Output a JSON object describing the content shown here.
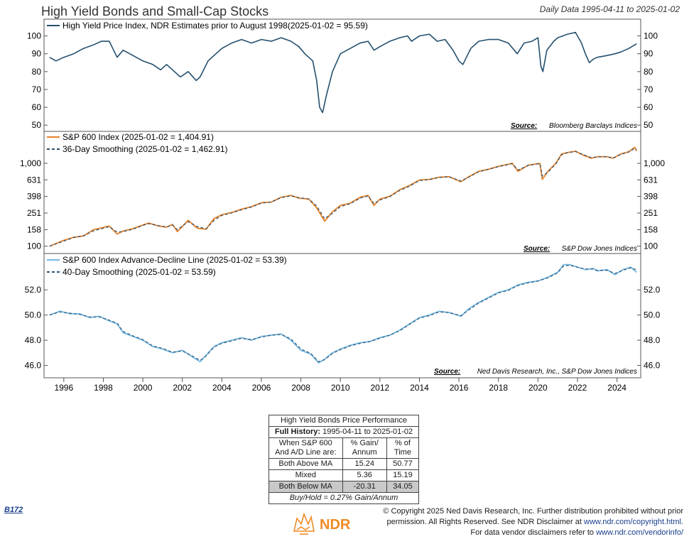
{
  "header": {
    "title": "High Yield Bonds and Small-Cap Stocks",
    "date_range": "Daily Data 1995-04-11 to 2025-01-02"
  },
  "colors": {
    "panel1": "#24506e",
    "panel2_raw": "#e7832c",
    "panel2_smooth": "#2f4e66",
    "panel3_raw": "#74b8e3",
    "panel3_smooth": "#2f5878",
    "logo": "#f08a24"
  },
  "chart_data": [
    {
      "type": "line",
      "legend": [
        "High Yield Price Index, NDR Estimates prior to August 1998(2025-01-02 = 95.59)"
      ],
      "source_label": "Source:",
      "source": "Bloomberg Barclays Indices",
      "y_ticks": [
        50,
        60,
        70,
        80,
        90,
        100
      ],
      "ylim": [
        48.5,
        107
      ],
      "series": [
        {
          "name": "High Yield Price Index",
          "x": [
            1995.28,
            1995.6,
            1996.0,
            1996.5,
            1997.0,
            1997.5,
            1997.9,
            1998.3,
            1998.7,
            1999.0,
            1999.5,
            2000.0,
            2000.5,
            2000.9,
            2001.2,
            2001.6,
            2001.9,
            2002.3,
            2002.7,
            2002.9,
            2003.3,
            2003.7,
            2004.0,
            2004.5,
            2005.0,
            2005.5,
            2006.0,
            2006.5,
            2007.0,
            2007.5,
            2007.9,
            2008.2,
            2008.6,
            2008.8,
            2008.95,
            2009.1,
            2009.3,
            2009.6,
            2010.0,
            2010.5,
            2011.0,
            2011.4,
            2011.7,
            2012.0,
            2012.5,
            2013.0,
            2013.4,
            2013.6,
            2014.0,
            2014.5,
            2014.9,
            2015.3,
            2015.7,
            2016.0,
            2016.2,
            2016.6,
            2017.0,
            2017.5,
            2018.0,
            2018.5,
            2018.95,
            2019.3,
            2019.7,
            2020.0,
            2020.15,
            2020.25,
            2020.45,
            2020.8,
            2021.0,
            2021.5,
            2021.9,
            2022.2,
            2022.4,
            2022.6,
            2022.8,
            2023.0,
            2023.5,
            2023.9,
            2024.2,
            2024.6,
            2024.99
          ],
          "y": [
            88,
            86,
            88,
            90,
            93,
            95,
            97,
            97,
            88,
            92,
            89,
            86,
            84,
            81,
            84,
            80,
            77,
            80,
            75,
            77,
            86,
            90,
            93,
            96,
            98,
            96,
            98,
            97,
            99,
            97,
            94,
            90,
            86,
            75,
            60,
            57,
            67,
            80,
            90,
            93,
            96,
            97,
            92,
            94,
            97,
            99,
            100,
            97,
            100,
            101,
            97,
            98,
            92,
            86,
            84,
            93,
            97,
            98,
            98,
            96,
            90,
            96,
            97,
            99,
            83,
            80,
            92,
            97,
            99,
            101,
            102,
            96,
            90,
            85,
            87,
            88,
            89,
            90,
            91,
            93,
            95.59
          ]
        }
      ]
    },
    {
      "type": "line",
      "legend": [
        "S&P 600 Index (2025-01-02 = 1,404.91)",
        "36-Day Smoothing (2025-01-02 = 1,462.91)"
      ],
      "source_label": "Source:",
      "source": "S&P Dow Jones Indices",
      "y_ticks": [
        100,
        158,
        251,
        398,
        631,
        1000
      ],
      "y_tick_labels": [
        "100",
        "158",
        "251",
        "398",
        "631",
        "1,000"
      ],
      "y_scale": "log",
      "ylim": [
        90,
        2200
      ],
      "series": [
        {
          "name": "S&P 600 Index",
          "x": [
            1995.28,
            1996.0,
            1996.5,
            1997.0,
            1997.5,
            1998.3,
            1998.7,
            1999.0,
            1999.5,
            2000.0,
            2000.3,
            2000.8,
            2001.2,
            2001.5,
            2001.75,
            2002.3,
            2002.75,
            2003.2,
            2003.6,
            2004.0,
            2004.5,
            2005.0,
            2005.5,
            2006.0,
            2006.5,
            2007.0,
            2007.5,
            2007.9,
            2008.4,
            2008.8,
            2009.2,
            2009.6,
            2010.0,
            2010.5,
            2011.0,
            2011.4,
            2011.7,
            2012.0,
            2012.5,
            2013.0,
            2013.5,
            2014.0,
            2014.5,
            2015.0,
            2015.5,
            2016.1,
            2016.5,
            2017.0,
            2017.5,
            2018.0,
            2018.7,
            2018.99,
            2019.5,
            2020.1,
            2020.22,
            2020.5,
            2020.9,
            2021.2,
            2021.5,
            2021.9,
            2022.3,
            2022.7,
            2023.0,
            2023.5,
            2023.8,
            2024.2,
            2024.6,
            2024.9,
            2024.99
          ],
          "y": [
            100,
            118,
            128,
            133,
            158,
            175,
            140,
            152,
            163,
            180,
            190,
            175,
            170,
            183,
            150,
            205,
            165,
            160,
            215,
            240,
            255,
            280,
            300,
            335,
            340,
            390,
            410,
            380,
            370,
            290,
            200,
            260,
            310,
            330,
            390,
            410,
            310,
            370,
            400,
            480,
            540,
            630,
            640,
            680,
            690,
            600,
            690,
            800,
            850,
            920,
            1000,
            800,
            950,
            1000,
            640,
            800,
            1000,
            1300,
            1350,
            1400,
            1250,
            1150,
            1200,
            1200,
            1150,
            1300,
            1380,
            1560,
            1404.91
          ]
        },
        {
          "name": "36-Day Smoothing",
          "x": [
            1995.28,
            1996.0,
            1996.5,
            1997.0,
            1997.5,
            1998.3,
            1998.7,
            1999.0,
            1999.5,
            2000.0,
            2000.3,
            2000.8,
            2001.2,
            2001.5,
            2001.75,
            2002.3,
            2002.75,
            2003.2,
            2003.6,
            2004.0,
            2004.5,
            2005.0,
            2005.5,
            2006.0,
            2006.5,
            2007.0,
            2007.5,
            2007.9,
            2008.4,
            2008.8,
            2009.2,
            2009.6,
            2010.0,
            2010.5,
            2011.0,
            2011.4,
            2011.7,
            2012.0,
            2012.5,
            2013.0,
            2013.5,
            2014.0,
            2014.5,
            2015.0,
            2015.5,
            2016.1,
            2016.5,
            2017.0,
            2017.5,
            2018.0,
            2018.7,
            2018.99,
            2019.5,
            2020.1,
            2020.22,
            2020.5,
            2020.9,
            2021.2,
            2021.5,
            2021.9,
            2022.3,
            2022.7,
            2023.0,
            2023.5,
            2023.8,
            2024.2,
            2024.6,
            2024.9,
            2024.99
          ],
          "y": [
            100,
            115,
            127,
            133,
            153,
            172,
            148,
            150,
            160,
            178,
            187,
            177,
            171,
            180,
            158,
            198,
            172,
            162,
            205,
            235,
            252,
            275,
            297,
            330,
            340,
            385,
            405,
            385,
            372,
            305,
            215,
            250,
            300,
            325,
            380,
            405,
            325,
            360,
            395,
            470,
            530,
            620,
            635,
            675,
            688,
            610,
            680,
            790,
            845,
            910,
            990,
            830,
            940,
            995,
            700,
            780,
            980,
            1270,
            1340,
            1390,
            1270,
            1170,
            1195,
            1200,
            1160,
            1280,
            1370,
            1520,
            1462.91
          ]
        }
      ]
    },
    {
      "type": "line",
      "legend": [
        "S&P 600 Index Advance-Decline Line (2025-01-02 = 53.39)",
        "40-Day Smoothing (2025-01-02 = 53.59)"
      ],
      "source_label": "Source:",
      "source": "Ned Davis Research, Inc., S&P Dow Jones Indices",
      "y_ticks": [
        46.0,
        48.0,
        50.0,
        52.0
      ],
      "y_tick_labels": [
        "46.0",
        "48.0",
        "50.0",
        "52.0"
      ],
      "ylim": [
        45.3,
        54.6
      ],
      "series": [
        {
          "name": "S&P 600 Index Advance-Decline Line",
          "x": [
            1995.28,
            1995.8,
            1996.3,
            1996.8,
            1997.3,
            1997.8,
            1998.2,
            1998.7,
            1999.0,
            1999.5,
            2000.0,
            2000.5,
            2001.0,
            2001.5,
            2002.0,
            2002.5,
            2002.9,
            2003.2,
            2003.6,
            2004.0,
            2004.5,
            2005.0,
            2005.5,
            2006.0,
            2006.5,
            2007.0,
            2007.5,
            2008.0,
            2008.5,
            2008.9,
            2009.2,
            2009.6,
            2010.0,
            2010.5,
            2011.0,
            2011.5,
            2012.0,
            2012.5,
            2013.0,
            2013.5,
            2014.0,
            2014.5,
            2015.0,
            2015.5,
            2016.1,
            2016.5,
            2017.0,
            2017.5,
            2018.0,
            2018.5,
            2019.0,
            2019.5,
            2020.0,
            2020.5,
            2021.0,
            2021.3,
            2021.6,
            2022.0,
            2022.4,
            2022.8,
            2023.0,
            2023.5,
            2023.9,
            2024.3,
            2024.7,
            2024.99
          ],
          "y": [
            50.0,
            50.3,
            50.1,
            50.1,
            49.8,
            49.9,
            49.6,
            49.3,
            48.6,
            48.3,
            48.0,
            47.5,
            47.3,
            47.0,
            47.2,
            46.7,
            46.3,
            46.8,
            47.5,
            47.8,
            48.0,
            48.2,
            48.0,
            48.3,
            48.4,
            48.5,
            48.0,
            47.2,
            46.9,
            46.2,
            46.5,
            47.0,
            47.3,
            47.6,
            47.8,
            47.9,
            48.2,
            48.4,
            48.8,
            49.3,
            49.8,
            50.0,
            50.3,
            50.2,
            49.9,
            50.5,
            51.0,
            51.4,
            51.8,
            52.0,
            52.4,
            52.6,
            52.7,
            53.0,
            53.4,
            54.0,
            54.0,
            53.8,
            53.6,
            53.7,
            53.5,
            53.6,
            53.2,
            53.6,
            53.8,
            53.39
          ]
        },
        {
          "name": "40-Day Smoothing",
          "x": [
            1995.28,
            1995.8,
            1996.3,
            1996.8,
            1997.3,
            1997.8,
            1998.2,
            1998.7,
            1999.0,
            1999.5,
            2000.0,
            2000.5,
            2001.0,
            2001.5,
            2002.0,
            2002.5,
            2002.9,
            2003.2,
            2003.6,
            2004.0,
            2004.5,
            2005.0,
            2005.5,
            2006.0,
            2006.5,
            2007.0,
            2007.5,
            2008.0,
            2008.5,
            2008.9,
            2009.2,
            2009.6,
            2010.0,
            2010.5,
            2011.0,
            2011.5,
            2012.0,
            2012.5,
            2013.0,
            2013.5,
            2014.0,
            2014.5,
            2015.0,
            2015.5,
            2016.1,
            2016.5,
            2017.0,
            2017.5,
            2018.0,
            2018.5,
            2019.0,
            2019.5,
            2020.0,
            2020.5,
            2021.0,
            2021.3,
            2021.6,
            2022.0,
            2022.4,
            2022.8,
            2023.0,
            2023.5,
            2023.9,
            2024.3,
            2024.7,
            2024.99
          ],
          "y": [
            50.0,
            50.25,
            50.15,
            50.05,
            49.85,
            49.85,
            49.65,
            49.35,
            48.7,
            48.35,
            48.05,
            47.55,
            47.35,
            47.05,
            47.15,
            46.75,
            46.4,
            46.75,
            47.45,
            47.75,
            47.95,
            48.15,
            48.05,
            48.25,
            48.4,
            48.45,
            48.1,
            47.3,
            46.95,
            46.3,
            46.45,
            46.95,
            47.25,
            47.55,
            47.75,
            47.9,
            48.15,
            48.4,
            48.75,
            49.25,
            49.75,
            49.95,
            50.25,
            50.2,
            49.95,
            50.4,
            50.95,
            51.35,
            51.75,
            51.95,
            52.35,
            52.55,
            52.7,
            52.95,
            53.35,
            53.9,
            53.95,
            53.8,
            53.65,
            53.65,
            53.55,
            53.55,
            53.3,
            53.55,
            53.75,
            53.59
          ]
        }
      ]
    }
  ],
  "x_axis": {
    "ticks": [
      1996,
      1998,
      2000,
      2002,
      2004,
      2006,
      2008,
      2010,
      2012,
      2014,
      2016,
      2018,
      2020,
      2022,
      2024
    ],
    "range": [
      1995.0,
      2025.2
    ]
  },
  "table": {
    "title": "High Yield Bonds Price Performance",
    "history_label": "Full History:",
    "history_value": "1995-04-11 to 2025-01-02",
    "col1_header": "When S&P 600 And A/D Line are:",
    "col2_header": "% Gain/ Annum",
    "col3_header": "% of Time",
    "rows": [
      {
        "label": "Both Above MA",
        "gain": "15.24",
        "time": "50.77"
      },
      {
        "label": "Mixed",
        "gain": "5.36",
        "time": "15.19"
      },
      {
        "label": "Both Below MA",
        "gain": "-20.31",
        "time": "34.05"
      }
    ],
    "footnote": "Buy/Hold = 0.27% Gain/Annum"
  },
  "footer": {
    "code": "B172",
    "logo_text": "NDR",
    "copyright_line1": "© Copyright 2025 Ned Davis Research, Inc. Further distribution prohibited without prior",
    "copyright_line2_a": "permission. All Rights Reserved. See NDR Disclaimer at",
    "copyright_line2_link": "www.ndr.com/copyright.html.",
    "copyright_line3_a": "For data vendor disclaimers refer to",
    "copyright_line3_link": "www.ndr.com/vendorinfo/"
  }
}
